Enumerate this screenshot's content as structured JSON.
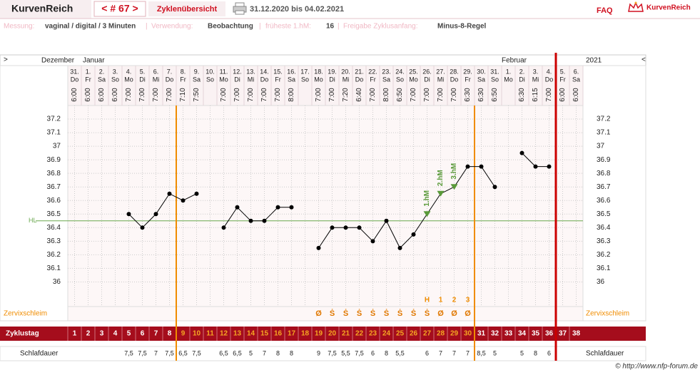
{
  "header": {
    "brand": "KurvenReich",
    "cycle_nav": "< # 67 >",
    "overview": "Zyklenübersicht",
    "date_range": "31.12.2020 bis 04.02.2021",
    "faq": "FAQ",
    "logo": "KurvenReich"
  },
  "info": {
    "measurement_label": "Messung:",
    "measurement": "vaginal / digital / 3 Minuten",
    "usage_label": "Verwendung:",
    "usage": "Beobachtung",
    "earliest_label": "früheste 1.hM:",
    "earliest": "16",
    "release_label": "Freigabe Zyklusanfang:",
    "release": "Minus-8-Regel"
  },
  "chart_data": {
    "type": "line",
    "nav_left": ">",
    "nav_right": "<",
    "month_labels": [
      "Dezember",
      "Januar",
      "Februar"
    ],
    "year": "2021",
    "categories": [
      "31.",
      "1.",
      "2.",
      "3.",
      "4.",
      "5.",
      "6.",
      "7.",
      "8.",
      "9.",
      "10.",
      "11.",
      "12.",
      "13.",
      "14.",
      "15.",
      "16.",
      "17.",
      "18.",
      "19.",
      "20.",
      "21.",
      "22.",
      "23.",
      "24.",
      "25.",
      "26.",
      "27.",
      "28.",
      "29.",
      "30.",
      "31.",
      "1.",
      "2.",
      "3.",
      "4.",
      "5.",
      "6."
    ],
    "weekdays": [
      "Do",
      "Fr",
      "Sa",
      "So",
      "Mo",
      "Di",
      "Mi",
      "Do",
      "Fr",
      "Sa",
      "So",
      "Mo",
      "Di",
      "Mi",
      "Do",
      "Fr",
      "Sa",
      "So",
      "Mo",
      "Di",
      "Mi",
      "Do",
      "Fr",
      "Sa",
      "So",
      "Mo",
      "Di",
      "Mi",
      "Do",
      "Fr",
      "Sa",
      "So",
      "Mo",
      "Di",
      "Mi",
      "Do",
      "Fr",
      "Sa"
    ],
    "times": [
      "6:00",
      "6:00",
      "6:00",
      "6:00",
      "7:00",
      "7:00",
      "7:00",
      "7:00",
      "7:10",
      "7:50",
      null,
      "7:00",
      "7:00",
      "7:00",
      "7:00",
      "7:00",
      "8:00",
      null,
      "7:00",
      "7:00",
      "7:20",
      "6:40",
      "7:00",
      "8:00",
      "6:50",
      "7:00",
      "7:00",
      "7:00",
      "7:00",
      "6:30",
      "6:30",
      "6:50",
      null,
      "6:30",
      "6:15",
      "7:00",
      "6:00",
      "6:00"
    ],
    "values": [
      null,
      null,
      null,
      null,
      36.5,
      36.4,
      36.5,
      36.65,
      36.6,
      36.65,
      null,
      36.4,
      36.55,
      36.45,
      36.45,
      36.55,
      36.55,
      null,
      36.25,
      36.4,
      36.4,
      36.4,
      36.3,
      36.45,
      36.25,
      36.35,
      36.5,
      36.65,
      36.7,
      36.85,
      36.85,
      36.7,
      null,
      36.95,
      36.85,
      36.85,
      null,
      null
    ],
    "color": "#000000",
    "ylim": [
      35.85,
      37.3
    ],
    "yticks": [
      {
        "value": 36,
        "label": "36"
      },
      36.1,
      36.2,
      36.3,
      36.4,
      36.5,
      36.6,
      36.7,
      36.8,
      36.9,
      {
        "value": 37,
        "label": "37"
      },
      37.1,
      37.2
    ],
    "grid": true,
    "hl": {
      "label": "HL",
      "value": 36.45,
      "color": "#6aa84f"
    },
    "hm_labels": [
      null,
      null,
      null,
      null,
      null,
      null,
      null,
      null,
      null,
      null,
      null,
      null,
      null,
      null,
      null,
      null,
      null,
      null,
      null,
      null,
      null,
      null,
      null,
      null,
      null,
      null,
      "1.hM",
      "2.hM",
      "3.hM",
      null,
      null,
      null,
      null,
      null,
      null,
      null,
      null,
      null
    ],
    "hm_color": "#5a9a3a",
    "peak_markers": [
      null,
      null,
      null,
      null,
      null,
      null,
      null,
      null,
      null,
      null,
      null,
      null,
      null,
      null,
      null,
      null,
      null,
      null,
      null,
      null,
      null,
      null,
      null,
      null,
      null,
      null,
      "H",
      "1",
      "2",
      "3",
      null,
      null,
      null,
      null,
      null,
      null,
      null,
      null
    ],
    "cervix": {
      "label": "Zervixschleim",
      "values": [
        null,
        null,
        null,
        null,
        null,
        null,
        null,
        null,
        null,
        null,
        null,
        null,
        null,
        null,
        null,
        null,
        null,
        null,
        "Ø",
        "Ṡ",
        "Ṡ",
        "Ṡ",
        "Ṡ",
        "Ṡ",
        "Ṡ",
        "Ṡ",
        "Ṡ",
        "Ø",
        "Ø",
        "Ø",
        null,
        null,
        null,
        null,
        null,
        null,
        null,
        null
      ]
    },
    "cycle_day": {
      "label": "Zyklustag",
      "values": [
        1,
        2,
        3,
        4,
        5,
        6,
        7,
        8,
        9,
        10,
        11,
        12,
        13,
        14,
        15,
        16,
        17,
        18,
        19,
        20,
        21,
        22,
        23,
        24,
        25,
        26,
        27,
        28,
        29,
        30,
        31,
        32,
        33,
        34,
        35,
        36,
        37,
        38
      ],
      "colors": [
        "#ffffff",
        "#ffffff",
        "#ffffff",
        "#ffffff",
        "#ffffff",
        "#ffffff",
        "#ffffff",
        "#ffffff",
        "#f5a623",
        "#f5a623",
        "#f5a623",
        "#f5a623",
        "#f5a623",
        "#f5a623",
        "#f5a623",
        "#f5a623",
        "#f5a623",
        "#f5a623",
        "#f5a623",
        "#f5a623",
        "#f5a623",
        "#f5a623",
        "#f5a623",
        "#f5a623",
        "#f5a623",
        "#f5a623",
        "#f5a623",
        "#f5a623",
        "#f5a623",
        "#f5a623",
        "#ffffff",
        "#ffffff",
        "#ffffff",
        "#ffffff",
        "#ffffff",
        "#ffffff",
        "#ffffff",
        "#ffffff"
      ]
    },
    "sleep": {
      "label": "Schlafdauer",
      "values": [
        null,
        null,
        null,
        null,
        7.5,
        7.5,
        7,
        7.5,
        6.5,
        7.5,
        null,
        6.5,
        6.5,
        5,
        7,
        8,
        8,
        null,
        9,
        7.5,
        5.5,
        7.5,
        6,
        8,
        5.5,
        null,
        6,
        7,
        7,
        7,
        8.5,
        5,
        null,
        5,
        8,
        6,
        null,
        null
      ],
      "value_labels": [
        null,
        null,
        null,
        null,
        "7,5",
        "7,5",
        "7",
        "7,5",
        "6,5",
        "7,5",
        null,
        "6,5",
        "6,5",
        "5",
        "7",
        "8",
        "8",
        null,
        "9",
        "7,5",
        "5,5",
        "7,5",
        "6",
        "8",
        "5,5",
        null,
        "6",
        "7",
        "7",
        "7",
        "8,5",
        "5",
        null,
        "5",
        "8",
        "6",
        null,
        null
      ]
    },
    "vlines": [
      {
        "after_day": 8,
        "color": "#f08c00"
      },
      {
        "after_day": 30,
        "color": "#f08c00"
      },
      {
        "after_day": 36,
        "color": "#cc0000"
      }
    ]
  },
  "footer": "© http://www.nfp-forum.de"
}
